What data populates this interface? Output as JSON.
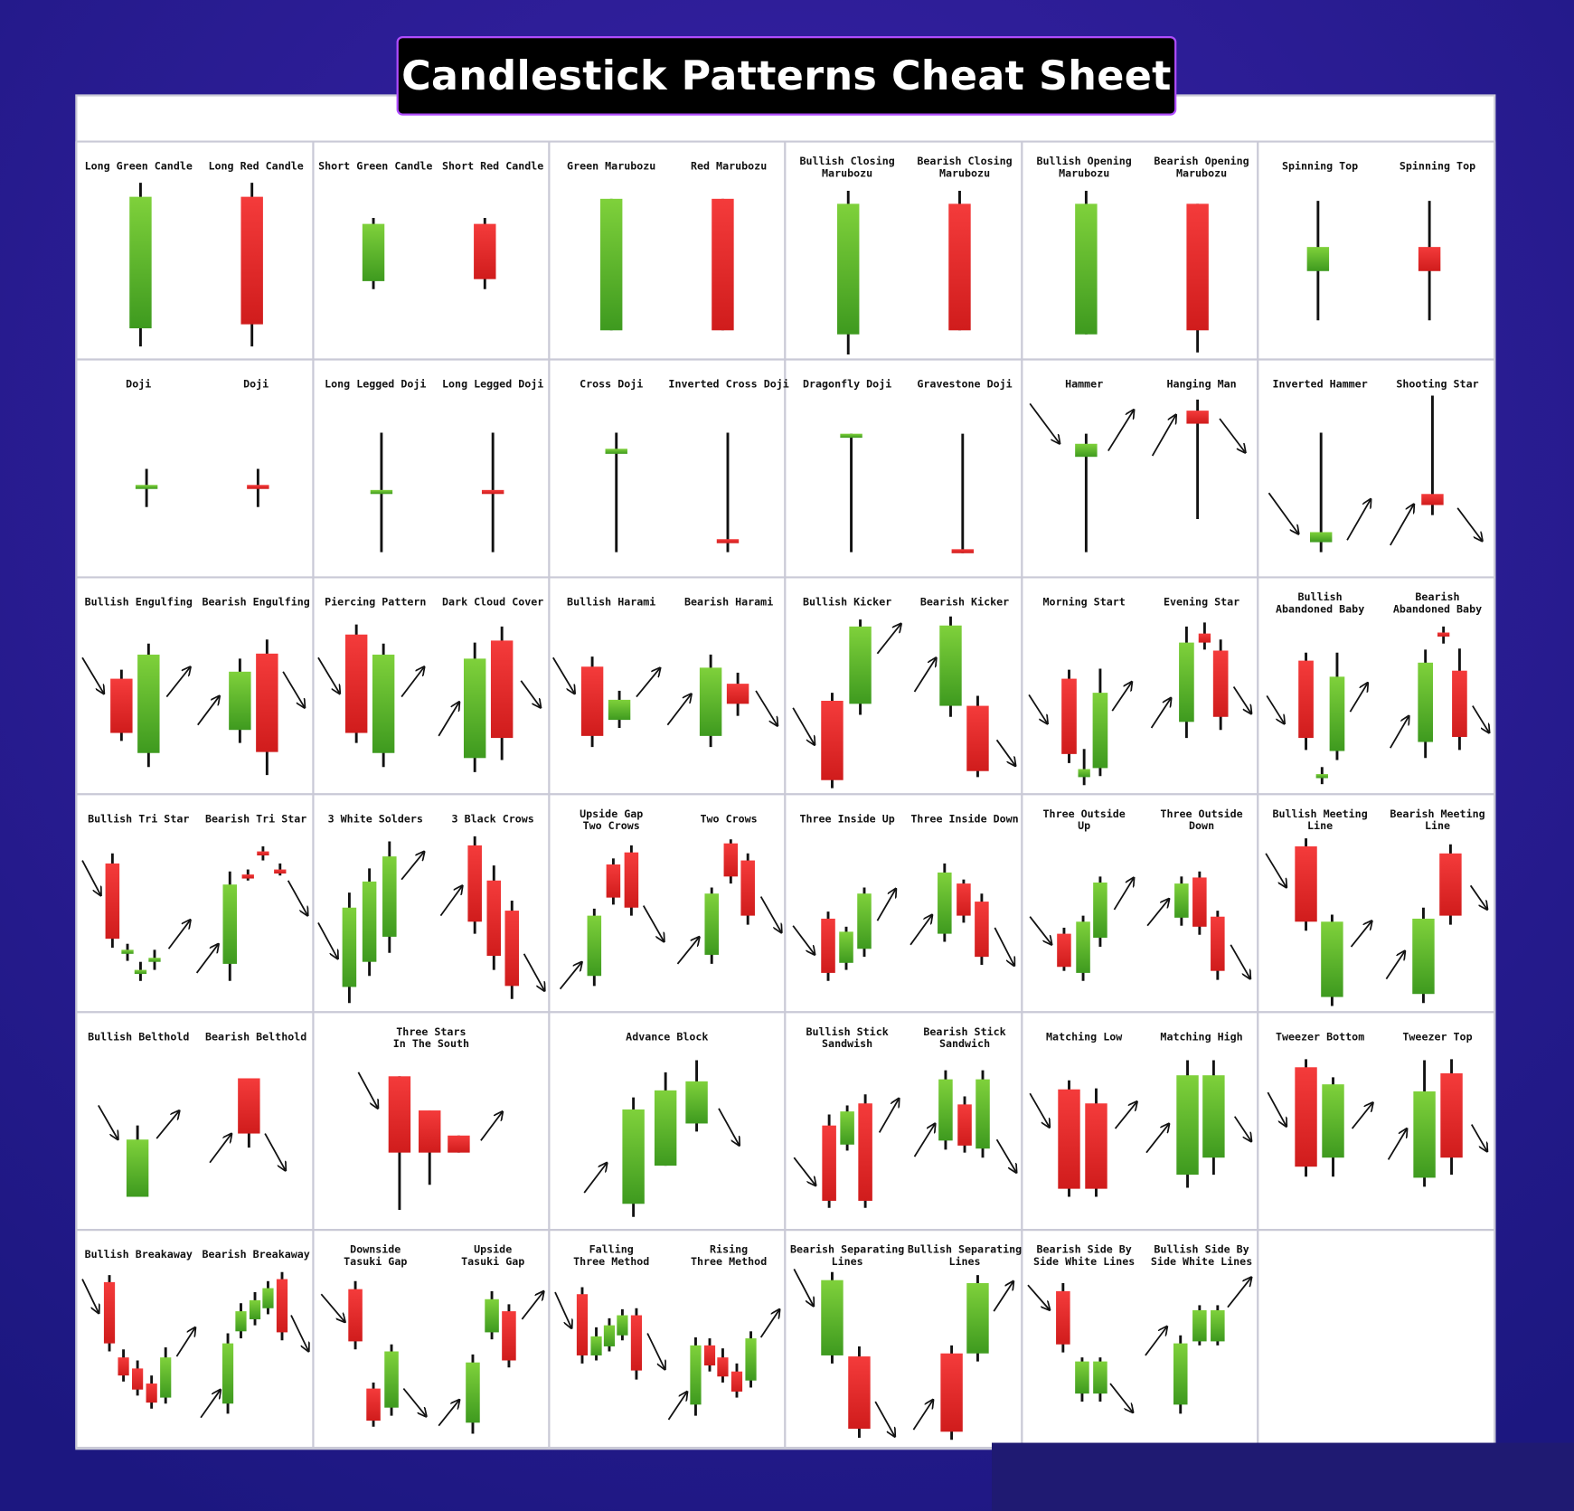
{
  "title": "Candlestick Patterns Cheat Sheet",
  "rows": [
    [
      [
        "Long Green Candle",
        "Long Red Candle"
      ],
      [
        "Short Green Candle",
        "Short Red Candle"
      ],
      [
        "Green Marubozu",
        "Red Marubozu"
      ],
      [
        "Bullish Closing\nMarubozu",
        "Bearish Closing\nMarubozu"
      ],
      [
        "Bullish Opening\nMarubozu",
        "Bearish Opening\nMarubozu"
      ],
      [
        "Spinning Top",
        "Spinning Top"
      ]
    ],
    [
      [
        "Doji",
        "Doji"
      ],
      [
        "Long Legged Doji",
        "Long Legged Doji"
      ],
      [
        "Cross Doji",
        "Inverted Cross Doji"
      ],
      [
        "Dragonfly Doji",
        "Gravestone Doji"
      ],
      [
        "Hammer",
        "Hanging Man"
      ],
      [
        "Inverted Hammer",
        "Shooting Star"
      ]
    ],
    [
      [
        "Bullish Engulfing",
        "Bearish Engulfing"
      ],
      [
        "Piercing Pattern",
        "Dark Cloud Cover"
      ],
      [
        "Bullish Harami",
        "Bearish Harami"
      ],
      [
        "Bullish Kicker",
        "Bearish Kicker"
      ],
      [
        "Morning Start",
        "Evening Star"
      ],
      [
        "Bullish\nAbandoned Baby",
        "Bearish\nAbandoned Baby"
      ]
    ],
    [
      [
        "Bullish Tri Star",
        "Bearish Tri Star"
      ],
      [
        "3 White Solders",
        "3 Black Crows"
      ],
      [
        "Upside Gap\nTwo Crows",
        "Two Crows"
      ],
      [
        "Three Inside Up",
        "Three Inside Down"
      ],
      [
        "Three Outside\nUp",
        "Three Outside\nDown"
      ],
      [
        "Bullish Meeting\nLine",
        "Bearish Meeting\nLine"
      ]
    ],
    [
      [
        "Bullish Belthold",
        "Bearish Belthold"
      ],
      [
        "Three Stars\nIn The South"
      ],
      [
        "Advance Block"
      ],
      [
        "Bullish Stick\nSandwish",
        "Bearish Stick\nSandwich"
      ],
      [
        "Matching Low",
        "Matching High"
      ],
      [
        "Tweezer Bottom",
        "Tweezer Top"
      ]
    ],
    [
      [
        "Bullish Breakaway",
        "Bearish Breakaway"
      ],
      [
        "Downside\nTasuki Gap",
        "Upside\nTasuki Gap"
      ],
      [
        "Falling\nThree Method",
        "Rising\nThree Method"
      ],
      [
        "Bearish Separating\nLines",
        "Bullish Separating\nLines"
      ],
      [
        "Bearish Side By\nSide White Lines",
        "Bullish Side By\nSide White Lines"
      ],
      []
    ]
  ]
}
